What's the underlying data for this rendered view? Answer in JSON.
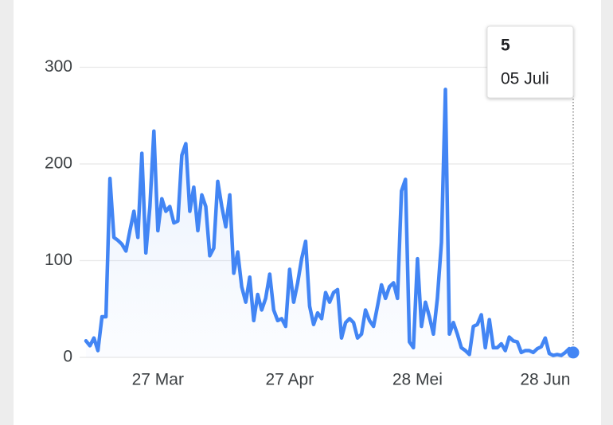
{
  "chart_data": {
    "type": "line",
    "categories": [
      null,
      null,
      null,
      null,
      null,
      null,
      null,
      null,
      null,
      null,
      null,
      null,
      null,
      null,
      null,
      null,
      null,
      null,
      "27 Mar",
      null,
      null,
      null,
      null,
      null,
      null,
      null,
      null,
      null,
      null,
      null,
      null,
      null,
      null,
      null,
      null,
      null,
      null,
      null,
      null,
      null,
      null,
      null,
      null,
      null,
      null,
      null,
      null,
      null,
      null,
      null,
      null,
      "27 Apr",
      null,
      null,
      null,
      null,
      null,
      null,
      null,
      null,
      null,
      null,
      null,
      null,
      null,
      null,
      null,
      null,
      null,
      null,
      null,
      null,
      null,
      null,
      null,
      null,
      null,
      null,
      null,
      null,
      null,
      null,
      null,
      "28 Mei",
      null,
      null,
      null,
      null,
      null,
      null,
      null,
      null,
      null,
      null,
      null,
      null,
      null,
      null,
      null,
      null,
      null,
      null,
      null,
      null,
      null,
      null,
      null,
      null,
      null,
      null,
      null,
      null,
      null,
      null,
      null,
      "28 Jun",
      null,
      null,
      null,
      null,
      null,
      null,
      "05 Juli"
    ],
    "series": [
      {
        "color": "#4285f4",
        "values": [
          17,
          12,
          20,
          7,
          42,
          42,
          185,
          124,
          121,
          117,
          110,
          131,
          151,
          124,
          211,
          108,
          156,
          234,
          131,
          164,
          151,
          156,
          139,
          141,
          209,
          221,
          151,
          176,
          131,
          168,
          156,
          105,
          113,
          182,
          156,
          135,
          168,
          87,
          109,
          73,
          57,
          83,
          38,
          65,
          49,
          61,
          86,
          49,
          38,
          40,
          32,
          91,
          57,
          77,
          102,
          120,
          53,
          34,
          46,
          40,
          67,
          57,
          67,
          70,
          20,
          36,
          40,
          36,
          20,
          24,
          49,
          38,
          32,
          53,
          75,
          61,
          73,
          77,
          61,
          172,
          184,
          16,
          10,
          102,
          32,
          57,
          42,
          24,
          61,
          119,
          277,
          24,
          36,
          24,
          10,
          7,
          3,
          32,
          34,
          44,
          10,
          39,
          10,
          10,
          14,
          7,
          21,
          17,
          16,
          5,
          7,
          7,
          5,
          9,
          11,
          20,
          4,
          2,
          3,
          2,
          5,
          9,
          5
        ]
      }
    ],
    "ylim": [
      0,
      340
    ],
    "yticks": [
      0,
      100,
      200,
      300
    ],
    "grid": true
  }
}
